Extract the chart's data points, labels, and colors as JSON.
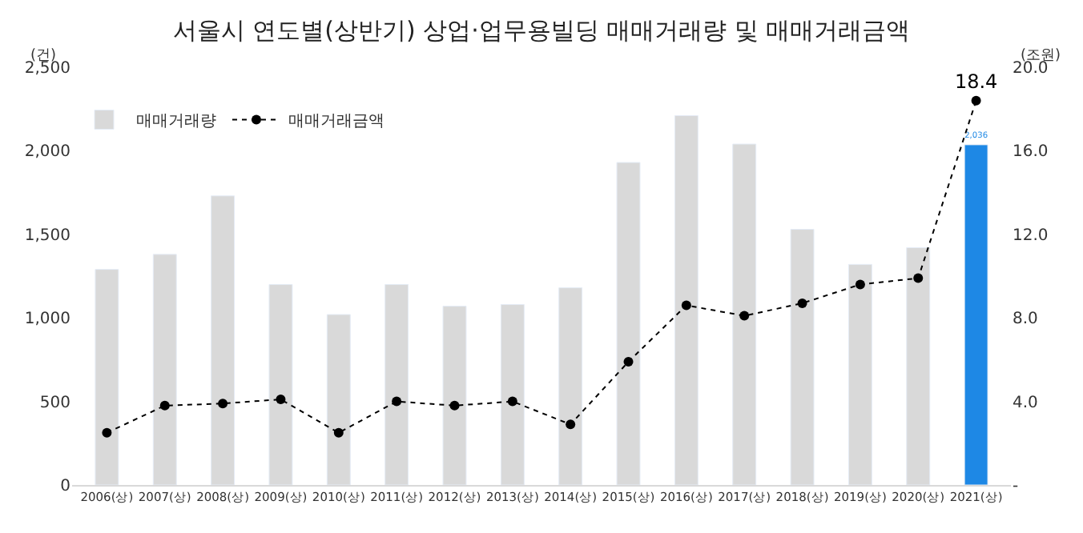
{
  "chart_data": {
    "type": "bar",
    "title": "서울시 연도별(상반기) 상업·업무용빌딩 매매거래량 및 매매거래금액",
    "ylabel": "(건)",
    "y2label": "(조원)",
    "categories": [
      "2006(상)",
      "2007(상)",
      "2008(상)",
      "2009(상)",
      "2010(상)",
      "2011(상)",
      "2012(상)",
      "2013(상)",
      "2014(상)",
      "2015(상)",
      "2016(상)",
      "2017(상)",
      "2018(상)",
      "2019(상)",
      "2020(상)",
      "2021(상)"
    ],
    "series": [
      {
        "name": "매매거래량",
        "color": "#d9d9d9",
        "colors": [
          "#d9d9d9",
          "#d9d9d9",
          "#d9d9d9",
          "#d9d9d9",
          "#d9d9d9",
          "#d9d9d9",
          "#d9d9d9",
          "#d9d9d9",
          "#d9d9d9",
          "#d9d9d9",
          "#d9d9d9",
          "#d9d9d9",
          "#d9d9d9",
          "#d9d9d9",
          "#d9d9d9",
          "#1e88e5"
        ],
        "values": [
          1290,
          1380,
          1730,
          1200,
          1020,
          1200,
          1070,
          1080,
          1180,
          1930,
          2210,
          2040,
          1530,
          1320,
          1420,
          2036
        ],
        "value_labels": [
          null,
          null,
          null,
          null,
          null,
          null,
          null,
          null,
          null,
          null,
          null,
          null,
          null,
          null,
          null,
          "2,036"
        ]
      },
      {
        "name": "매매거래금액",
        "type": "line",
        "axis": "y2",
        "color": "#000000",
        "line_style": "dotted",
        "marker": "circle",
        "values": [
          2.5,
          3.8,
          3.9,
          4.1,
          2.5,
          4.0,
          3.8,
          4.0,
          2.9,
          5.9,
          8.6,
          8.1,
          8.7,
          9.6,
          9.9,
          18.4
        ],
        "value_labels": [
          null,
          null,
          null,
          null,
          null,
          null,
          null,
          null,
          null,
          null,
          null,
          null,
          null,
          null,
          null,
          "18.4"
        ]
      }
    ],
    "ylim": [
      0,
      2500
    ],
    "yticks": [
      0,
      {
        "value": 500,
        "label": "500"
      },
      {
        "value": 1000,
        "label": "1,000"
      },
      {
        "value": 1500,
        "label": "1,500"
      },
      {
        "value": 2000,
        "label": "2,000"
      },
      {
        "value": 2500,
        "label": "2,500"
      }
    ],
    "y2lim": [
      0,
      20
    ],
    "y2ticks": [
      {
        "value": 0,
        "label": "-"
      },
      {
        "value": 4,
        "label": "4.0"
      },
      {
        "value": 8,
        "label": "8.0"
      },
      {
        "value": 12,
        "label": "12.0"
      },
      {
        "value": 16,
        "label": "16.0"
      },
      {
        "value": 20,
        "label": "20.0"
      }
    ],
    "legend": "top left"
  }
}
